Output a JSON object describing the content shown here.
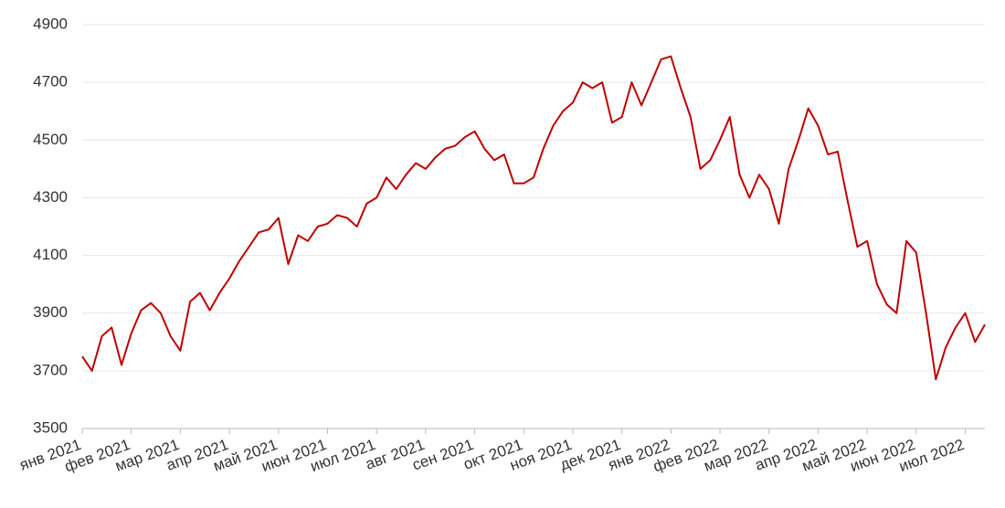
{
  "chart_data": {
    "type": "line",
    "color": "#c00000",
    "grid": true,
    "ylim": [
      3500,
      4900
    ],
    "yticks": [
      3500,
      3700,
      3900,
      4100,
      4300,
      4500,
      4700,
      4900
    ],
    "categories": [
      "янв 2021",
      null,
      null,
      null,
      null,
      "фев 2021",
      null,
      null,
      null,
      null,
      "мар 2021",
      null,
      null,
      null,
      null,
      "апр 2021",
      null,
      null,
      null,
      null,
      "май 2021",
      null,
      null,
      null,
      null,
      "июн 2021",
      null,
      null,
      null,
      null,
      "июл 2021",
      null,
      null,
      null,
      null,
      "авг 2021",
      null,
      null,
      null,
      null,
      "сен 2021",
      null,
      null,
      null,
      null,
      "окт 2021",
      null,
      null,
      null,
      null,
      "ноя 2021",
      null,
      null,
      null,
      null,
      "дек 2021",
      null,
      null,
      null,
      null,
      "янв 2022",
      null,
      null,
      null,
      null,
      "фев 2022",
      null,
      null,
      null,
      null,
      "мар 2022",
      null,
      null,
      null,
      null,
      "апр 2022",
      null,
      null,
      null,
      null,
      "май 2022",
      null,
      null,
      null,
      null,
      "июн 2022",
      null,
      null,
      null,
      null,
      "июл 2022",
      null,
      null
    ],
    "values": [
      3750,
      3700,
      3820,
      3850,
      3720,
      3830,
      3910,
      3935,
      3900,
      3820,
      3770,
      3940,
      3970,
      3910,
      3970,
      4020,
      4080,
      4130,
      4180,
      4190,
      4230,
      4070,
      4170,
      4150,
      4200,
      4210,
      4240,
      4230,
      4200,
      4280,
      4300,
      4370,
      4330,
      4380,
      4420,
      4400,
      4440,
      4470,
      4480,
      4510,
      4530,
      4470,
      4430,
      4450,
      4350,
      4350,
      4370,
      4470,
      4550,
      4600,
      4630,
      4700,
      4680,
      4700,
      4560,
      4580,
      4700,
      4620,
      4700,
      4780,
      4790,
      4680,
      4580,
      4400,
      4430,
      4500,
      4580,
      4380,
      4300,
      4380,
      4330,
      4210,
      4400,
      4500,
      4610,
      4550,
      4450,
      4460,
      4290,
      4130,
      4150,
      4000,
      3930,
      3900,
      4150,
      4110,
      3900,
      3670,
      3780,
      3850,
      3900,
      3800,
      3860
    ]
  }
}
